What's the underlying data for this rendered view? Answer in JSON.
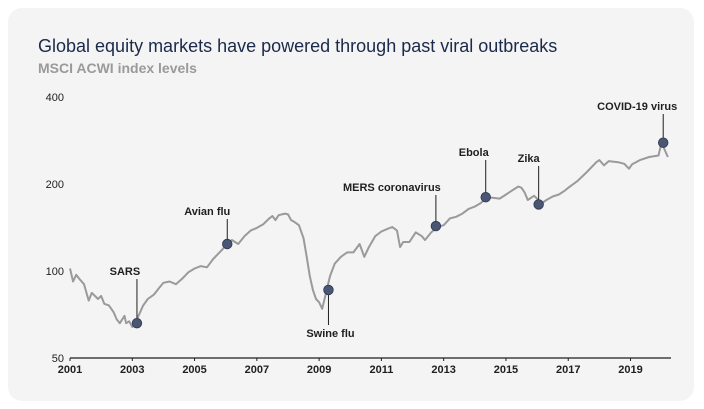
{
  "chart_data": {
    "type": "line",
    "title": "Global equity markets have powered through past viral outbreaks",
    "subtitle": "MSCI ACWI index levels",
    "xlabel": "",
    "ylabel": "",
    "y_scale": "log",
    "ylim": [
      50,
      400
    ],
    "yticks": [
      "400",
      "200",
      "100",
      "50"
    ],
    "xlim": [
      2001,
      2020.3
    ],
    "xticks": [
      "2001",
      "2003",
      "2005",
      "2007",
      "2009",
      "2011",
      "2013",
      "2015",
      "2017",
      "2019"
    ],
    "grid": false,
    "series": [
      {
        "color": "#9a9a9a",
        "x": [
          2001.0,
          2001.1,
          2001.2,
          2001.3,
          2001.45,
          2001.6,
          2001.7,
          2001.8,
          2001.9,
          2002.0,
          2002.1,
          2002.25,
          2002.4,
          2002.5,
          2002.6,
          2002.75,
          2002.8,
          2002.9,
          2003.0,
          2003.1,
          2003.2,
          2003.35,
          2003.5,
          2003.7,
          2003.85,
          2004.0,
          2004.2,
          2004.4,
          2004.6,
          2004.8,
          2005.0,
          2005.2,
          2005.4,
          2005.6,
          2005.8,
          2006.0,
          2006.2,
          2006.4,
          2006.6,
          2006.8,
          2007.0,
          2007.2,
          2007.4,
          2007.5,
          2007.6,
          2007.7,
          2007.9,
          2008.0,
          2008.1,
          2008.2,
          2008.35,
          2008.5,
          2008.6,
          2008.7,
          2008.8,
          2008.9,
          2009.0,
          2009.1,
          2009.2,
          2009.35,
          2009.5,
          2009.7,
          2009.9,
          2010.1,
          2010.3,
          2010.45,
          2010.6,
          2010.8,
          2011.0,
          2011.2,
          2011.35,
          2011.5,
          2011.6,
          2011.7,
          2011.9,
          2012.1,
          2012.3,
          2012.4,
          2012.6,
          2012.8,
          2013.0,
          2013.2,
          2013.4,
          2013.6,
          2013.8,
          2014.0,
          2014.2,
          2014.4,
          2014.6,
          2014.8,
          2015.0,
          2015.2,
          2015.4,
          2015.5,
          2015.6,
          2015.7,
          2015.9,
          2016.0,
          2016.1,
          2016.3,
          2016.5,
          2016.7,
          2016.9,
          2017.0,
          2017.3,
          2017.6,
          2017.9,
          2018.0,
          2018.15,
          2018.3,
          2018.6,
          2018.8,
          2018.95,
          2019.05,
          2019.3,
          2019.6,
          2019.9,
          2020.0,
          2020.1,
          2020.2
        ],
        "y": [
          102,
          92,
          97,
          94,
          90,
          79,
          84,
          82,
          80,
          82,
          77,
          76,
          72,
          68,
          66,
          70,
          66,
          67,
          64,
          66,
          70,
          76,
          80,
          83,
          87,
          91,
          92,
          90,
          94,
          99,
          102,
          104,
          103,
          110,
          116,
          122,
          128,
          124,
          132,
          138,
          141,
          145,
          152,
          155,
          150,
          156,
          158,
          157,
          150,
          148,
          144,
          130,
          112,
          96,
          86,
          80,
          78,
          74,
          82,
          96,
          106,
          112,
          116,
          116,
          124,
          112,
          121,
          132,
          137,
          140,
          142,
          138,
          121,
          126,
          126,
          136,
          132,
          128,
          136,
          142,
          144,
          152,
          154,
          158,
          164,
          167,
          172,
          180,
          179,
          178,
          184,
          190,
          196,
          194,
          187,
          176,
          182,
          178,
          170,
          176,
          181,
          184,
          190,
          194,
          205,
          220,
          238,
          242,
          232,
          240,
          238,
          235,
          226,
          234,
          242,
          248,
          251,
          280,
          262,
          248
        ]
      }
    ],
    "annotations": [
      {
        "label": "SARS",
        "x": 2003.15,
        "y": 66
      },
      {
        "label": "Avian flu",
        "x": 2006.05,
        "y": 124
      },
      {
        "label": "Swine flu",
        "x": 2009.3,
        "y": 86
      },
      {
        "label": "MERS coronavirus",
        "x": 2012.75,
        "y": 143
      },
      {
        "label": "Ebola",
        "x": 2014.35,
        "y": 180
      },
      {
        "label": "Zika",
        "x": 2016.05,
        "y": 170
      },
      {
        "label": "COVID-19 virus",
        "x": 2020.05,
        "y": 278
      }
    ]
  }
}
